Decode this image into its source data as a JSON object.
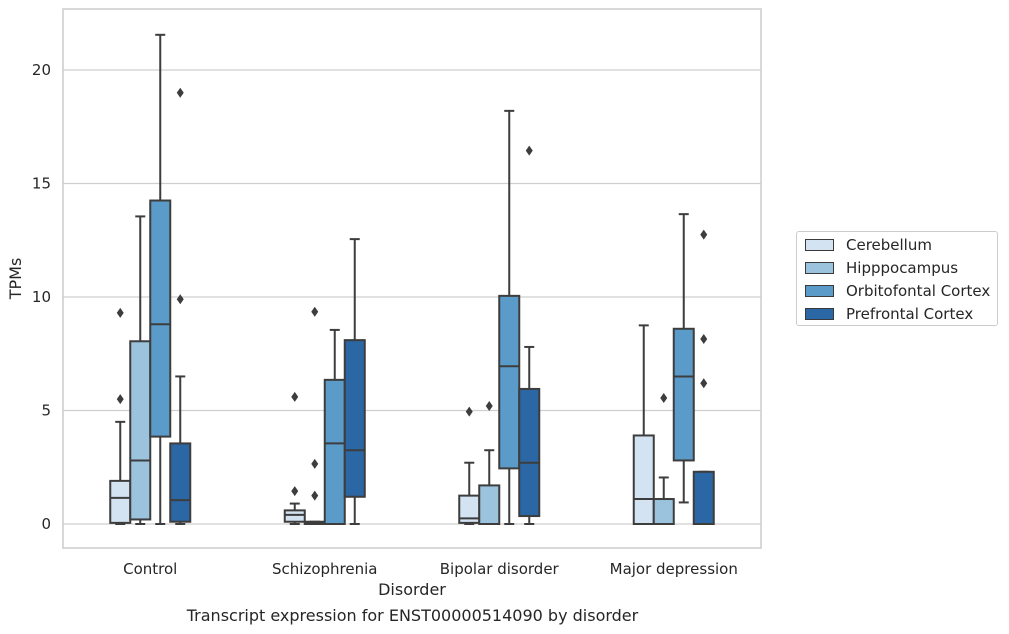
{
  "chart_data": {
    "type": "box",
    "caption": "Transcript expression for ENST00000514090 by disorder",
    "xlabel": "Disorder",
    "ylabel": "TPMs",
    "ylim": [
      -1,
      22.7
    ],
    "yticks": [
      0,
      5,
      10,
      15,
      20
    ],
    "grid": "horizontal",
    "legend_position": "right",
    "categories": [
      "Control",
      "Schizophrenia",
      "Bipolar disorder",
      "Major depression"
    ],
    "series": [
      {
        "name": "Cerebellum",
        "color": "#d3e3f2",
        "boxes": [
          {
            "whislo": 0,
            "q1": 0.05,
            "med": 1.15,
            "q3": 1.9,
            "whishi": 4.5,
            "fliers": [
              5.5,
              9.3
            ]
          },
          {
            "whislo": 0,
            "q1": 0.1,
            "med": 0.4,
            "q3": 0.6,
            "whishi": 0.9,
            "fliers": [
              1.45,
              5.6
            ]
          },
          {
            "whislo": 0,
            "q1": 0.05,
            "med": 0.25,
            "q3": 1.25,
            "whishi": 2.7,
            "fliers": [
              4.95
            ]
          },
          {
            "whislo": 0,
            "q1": 0,
            "med": 1.1,
            "q3": 3.9,
            "whishi": 8.75,
            "fliers": []
          }
        ]
      },
      {
        "name": "Hipppocampus",
        "color": "#9cc3de",
        "boxes": [
          {
            "whislo": 0,
            "q1": 0.2,
            "med": 2.8,
            "q3": 8.05,
            "whishi": 13.55,
            "fliers": []
          },
          {
            "whislo": 0,
            "q1": 0,
            "med": 0.05,
            "q3": 0.1,
            "whishi": 0.1,
            "fliers": [
              1.25,
              2.65,
              9.35
            ]
          },
          {
            "whislo": 0,
            "q1": 0,
            "med": 0,
            "q3": 1.7,
            "whishi": 3.25,
            "fliers": [
              5.2
            ]
          },
          {
            "whislo": 0,
            "q1": 0,
            "med": 0,
            "q3": 1.1,
            "whishi": 2.05,
            "fliers": [
              5.55
            ]
          }
        ]
      },
      {
        "name": "Orbitofontal Cortex",
        "color": "#5b9bc9",
        "boxes": [
          {
            "whislo": 0,
            "q1": 3.85,
            "med": 8.8,
            "q3": 14.25,
            "whishi": 21.55,
            "fliers": []
          },
          {
            "whislo": 0,
            "q1": 0,
            "med": 3.55,
            "q3": 6.35,
            "whishi": 8.55,
            "fliers": []
          },
          {
            "whislo": 0,
            "q1": 2.45,
            "med": 6.95,
            "q3": 10.05,
            "whishi": 18.2,
            "fliers": []
          },
          {
            "whislo": 0.95,
            "q1": 2.8,
            "med": 6.5,
            "q3": 8.6,
            "whishi": 13.65,
            "fliers": []
          }
        ]
      },
      {
        "name": "Prefrontal Cortex",
        "color": "#2b66a5",
        "boxes": [
          {
            "whislo": 0,
            "q1": 0.1,
            "med": 1.05,
            "q3": 3.55,
            "whishi": 6.5,
            "fliers": [
              9.9,
              19.0
            ]
          },
          {
            "whislo": 0,
            "q1": 1.2,
            "med": 3.25,
            "q3": 8.1,
            "whishi": 12.55,
            "fliers": []
          },
          {
            "whislo": 0,
            "q1": 0.35,
            "med": 2.7,
            "q3": 5.95,
            "whishi": 7.8,
            "fliers": [
              16.45
            ]
          },
          {
            "whislo": 0,
            "q1": 0,
            "med": 0,
            "q3": 2.3,
            "whishi": 2.3,
            "fliers": [
              6.2,
              8.15,
              12.75
            ]
          }
        ]
      }
    ]
  }
}
